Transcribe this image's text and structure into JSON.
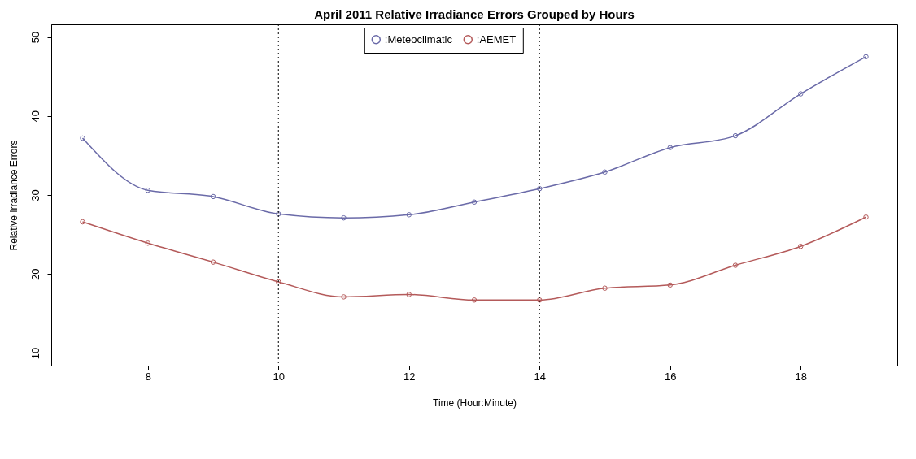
{
  "chart_data": {
    "type": "line",
    "title": "April 2011 Relative Irradiance Errors Grouped by Hours",
    "xlabel": "Time (Hour:Minute)",
    "ylabel": "Relative Irradiance Errors",
    "x": [
      7,
      8,
      9,
      10,
      11,
      12,
      13,
      14,
      15,
      16,
      17,
      18,
      19
    ],
    "series": [
      {
        "name": ":Meteoclimatic",
        "color": "#6a6aa8",
        "values": [
          37.2,
          30.6,
          29.8,
          27.6,
          27.1,
          27.5,
          29.1,
          30.8,
          32.9,
          36.0,
          37.5,
          42.8,
          47.5
        ]
      },
      {
        "name": ":AEMET",
        "color": "#b45a5a",
        "values": [
          26.6,
          23.9,
          21.5,
          19.0,
          17.1,
          17.4,
          16.7,
          16.7,
          18.2,
          18.6,
          21.1,
          23.5,
          27.2
        ]
      }
    ],
    "xlim": [
      6.52,
      19.48
    ],
    "xticks": [
      8,
      10,
      12,
      14,
      16,
      18
    ],
    "ylim": [
      8.4,
      51.6
    ],
    "yticks": [
      10,
      20,
      30,
      40,
      50
    ],
    "ref_lines": [
      {
        "axis": "x",
        "value": 10,
        "line_style": "dotted",
        "color": "#000000"
      },
      {
        "axis": "x",
        "value": 14,
        "line_style": "dotted",
        "color": "#000000"
      }
    ],
    "grid": false,
    "legend": "top",
    "marker": "circle",
    "line_style": "solid"
  }
}
